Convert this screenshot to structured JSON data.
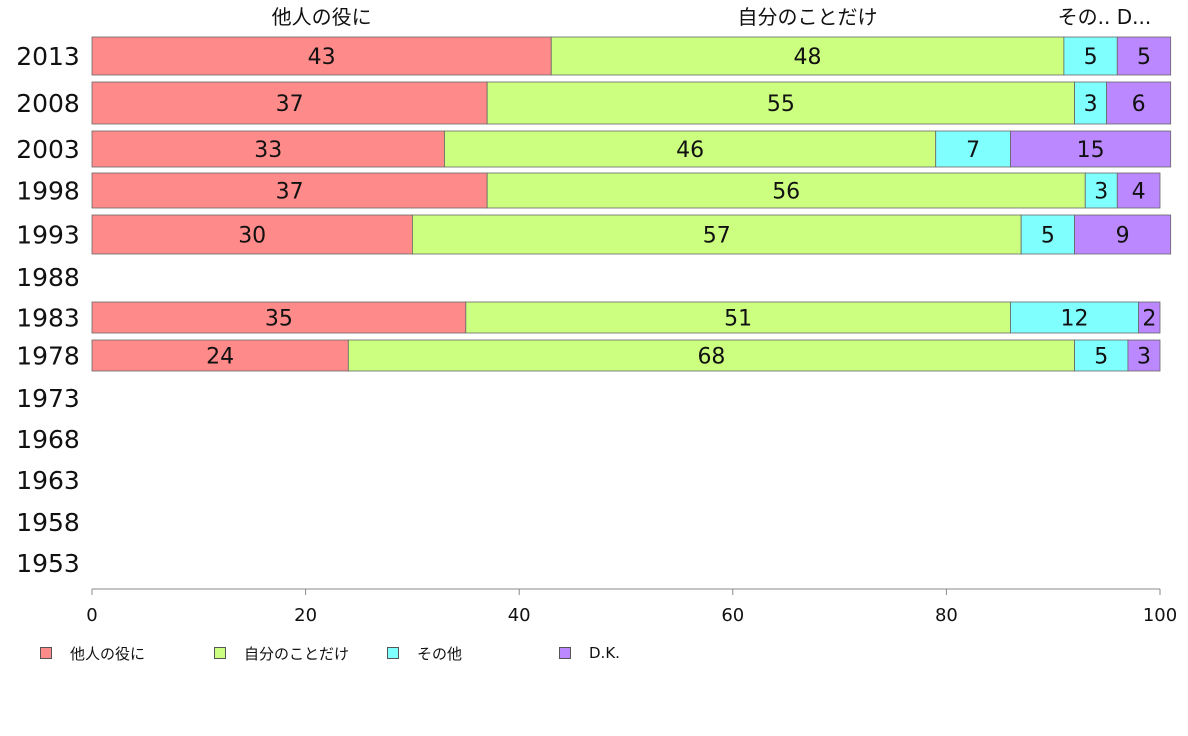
{
  "chart_data": {
    "type": "bar",
    "orientation": "horizontal",
    "stacked": true,
    "categories": [
      "2013",
      "2008",
      "2003",
      "1998",
      "1993",
      "1988",
      "1983",
      "1978",
      "1973",
      "1968",
      "1963",
      "1958",
      "1953"
    ],
    "series": [
      {
        "name": "他人の役に",
        "color": "#ff8a8a",
        "values": [
          43,
          37,
          33,
          37,
          30,
          null,
          35,
          24,
          null,
          null,
          null,
          null,
          null
        ]
      },
      {
        "name": "自分のことだけ",
        "color": "#ccff80",
        "values": [
          48,
          55,
          46,
          56,
          57,
          null,
          51,
          68,
          null,
          null,
          null,
          null,
          null
        ]
      },
      {
        "name": "その他",
        "color": "#80ffff",
        "values": [
          5,
          3,
          7,
          3,
          5,
          null,
          12,
          5,
          null,
          null,
          null,
          null,
          null
        ]
      },
      {
        "name": "D.K.",
        "color": "#bb88ff",
        "values": [
          5,
          6,
          15,
          4,
          9,
          null,
          2,
          3,
          null,
          null,
          null,
          null,
          null
        ]
      }
    ],
    "top_labels": [
      "他人の役に",
      "自分のことだけ",
      "その..",
      "D..."
    ],
    "xlim": [
      0,
      100
    ],
    "xticks": [
      "0",
      "20",
      "40",
      "60",
      "80",
      "100"
    ],
    "grid": false,
    "legend_position": "bottom"
  }
}
